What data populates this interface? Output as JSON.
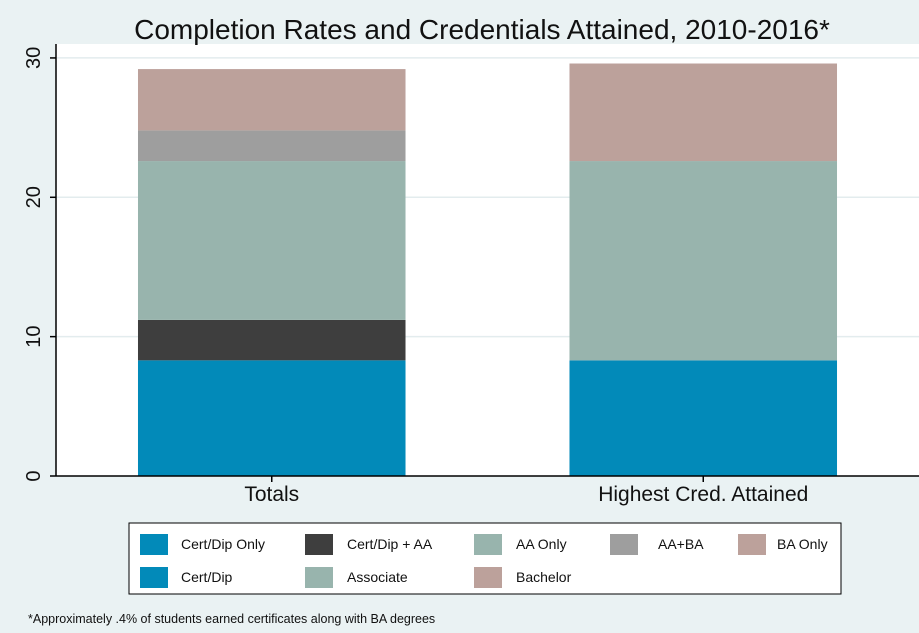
{
  "chart_data": {
    "type": "bar",
    "stacked": true,
    "title": "Completion Rates and Credentials Attained, 2010-2016*",
    "xlabel": "",
    "ylabel": "",
    "categories": [
      "Totals",
      "Highest Cred. Attained"
    ],
    "ylim": [
      0,
      31
    ],
    "yticks": [
      0,
      10,
      20,
      30
    ],
    "grid": true,
    "legend_position": "bottom",
    "series": [
      {
        "name": "Cert/Dip Only",
        "color": "#028ab9",
        "values": [
          8.3,
          null
        ]
      },
      {
        "name": "Cert/Dip + AA",
        "color": "#3e3e3e",
        "values": [
          2.9,
          null
        ]
      },
      {
        "name": "AA Only",
        "color": "#98b4ad",
        "values": [
          11.4,
          null
        ]
      },
      {
        "name": "AA+BA",
        "color": "#9e9e9e",
        "values": [
          2.2,
          null
        ]
      },
      {
        "name": "BA Only",
        "color": "#bca19b",
        "values": [
          4.4,
          null
        ]
      },
      {
        "name": "Cert/Dip",
        "color": "#028ab9",
        "values": [
          null,
          8.3
        ]
      },
      {
        "name": "Associate",
        "color": "#98b4ad",
        "values": [
          null,
          14.3
        ]
      },
      {
        "name": "Bachelor",
        "color": "#bca19b",
        "values": [
          null,
          7.0
        ]
      }
    ],
    "note": "*Approximately .4% of students earned certificates along with BA degrees"
  }
}
